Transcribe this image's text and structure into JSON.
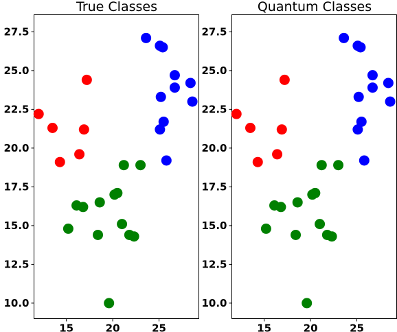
{
  "chart_data": [
    {
      "type": "scatter",
      "title": "True Classes",
      "xlabel": "",
      "ylabel": "",
      "xlim": [
        11.5,
        29.3
      ],
      "ylim": [
        9.0,
        28.6
      ],
      "xticks": [
        15,
        20,
        25
      ],
      "xtick_labels": [
        "15",
        "20",
        "25"
      ],
      "yticks": [
        10.0,
        12.5,
        15.0,
        17.5,
        20.0,
        22.5,
        25.0,
        27.5
      ],
      "ytick_labels": [
        "10.0",
        "12.5",
        "15.0",
        "17.5",
        "20.0",
        "22.5",
        "25.0",
        "27.5"
      ],
      "grid": false,
      "series": [
        {
          "color": "#ff0000",
          "points": [
            [
              12.0,
              22.2
            ],
            [
              13.5,
              21.3
            ],
            [
              14.3,
              19.1
            ],
            [
              16.4,
              19.6
            ],
            [
              16.9,
              21.2
            ],
            [
              17.2,
              24.4
            ]
          ]
        },
        {
          "color": "#0000ff",
          "points": [
            [
              23.6,
              27.1
            ],
            [
              25.1,
              26.6
            ],
            [
              25.4,
              26.5
            ],
            [
              26.7,
              24.7
            ],
            [
              28.4,
              24.2
            ],
            [
              26.7,
              23.9
            ],
            [
              25.2,
              23.3
            ],
            [
              28.6,
              23.0
            ],
            [
              25.5,
              21.7
            ],
            [
              25.1,
              21.2
            ],
            [
              25.8,
              19.2
            ]
          ]
        },
        {
          "color": "#008000",
          "points": [
            [
              21.2,
              18.9
            ],
            [
              23.0,
              18.9
            ],
            [
              20.5,
              17.1
            ],
            [
              20.2,
              17.0
            ],
            [
              18.6,
              16.5
            ],
            [
              16.1,
              16.3
            ],
            [
              16.8,
              16.2
            ],
            [
              15.2,
              14.8
            ],
            [
              21.0,
              15.1
            ],
            [
              18.4,
              14.4
            ],
            [
              21.8,
              14.4
            ],
            [
              22.3,
              14.3
            ],
            [
              19.6,
              10.0
            ]
          ]
        }
      ]
    },
    {
      "type": "scatter",
      "title": "Quantum Classes",
      "xlabel": "",
      "ylabel": "",
      "xlim": [
        11.5,
        29.3
      ],
      "ylim": [
        9.0,
        28.6
      ],
      "xticks": [
        15,
        20,
        25
      ],
      "xtick_labels": [
        "15",
        "20",
        "25"
      ],
      "yticks": [
        10.0,
        12.5,
        15.0,
        17.5,
        20.0,
        22.5,
        25.0,
        27.5
      ],
      "ytick_labels": [
        "10.0",
        "12.5",
        "15.0",
        "17.5",
        "20.0",
        "22.5",
        "25.0",
        "27.5"
      ],
      "grid": false,
      "series": [
        {
          "color": "#ff0000",
          "points": [
            [
              12.0,
              22.2
            ],
            [
              13.5,
              21.3
            ],
            [
              14.3,
              19.1
            ],
            [
              16.4,
              19.6
            ],
            [
              16.9,
              21.2
            ],
            [
              17.2,
              24.4
            ]
          ]
        },
        {
          "color": "#0000ff",
          "points": [
            [
              23.6,
              27.1
            ],
            [
              25.1,
              26.6
            ],
            [
              25.4,
              26.5
            ],
            [
              26.7,
              24.7
            ],
            [
              28.4,
              24.2
            ],
            [
              26.7,
              23.9
            ],
            [
              25.2,
              23.3
            ],
            [
              28.6,
              23.0
            ],
            [
              25.5,
              21.7
            ],
            [
              25.1,
              21.2
            ],
            [
              25.8,
              19.2
            ]
          ]
        },
        {
          "color": "#008000",
          "points": [
            [
              21.2,
              18.9
            ],
            [
              23.0,
              18.9
            ],
            [
              20.5,
              17.1
            ],
            [
              20.2,
              17.0
            ],
            [
              18.6,
              16.5
            ],
            [
              16.1,
              16.3
            ],
            [
              16.8,
              16.2
            ],
            [
              15.2,
              14.8
            ],
            [
              21.0,
              15.1
            ],
            [
              18.4,
              14.4
            ],
            [
              21.8,
              14.4
            ],
            [
              22.3,
              14.3
            ],
            [
              19.6,
              10.0
            ]
          ]
        }
      ]
    }
  ]
}
